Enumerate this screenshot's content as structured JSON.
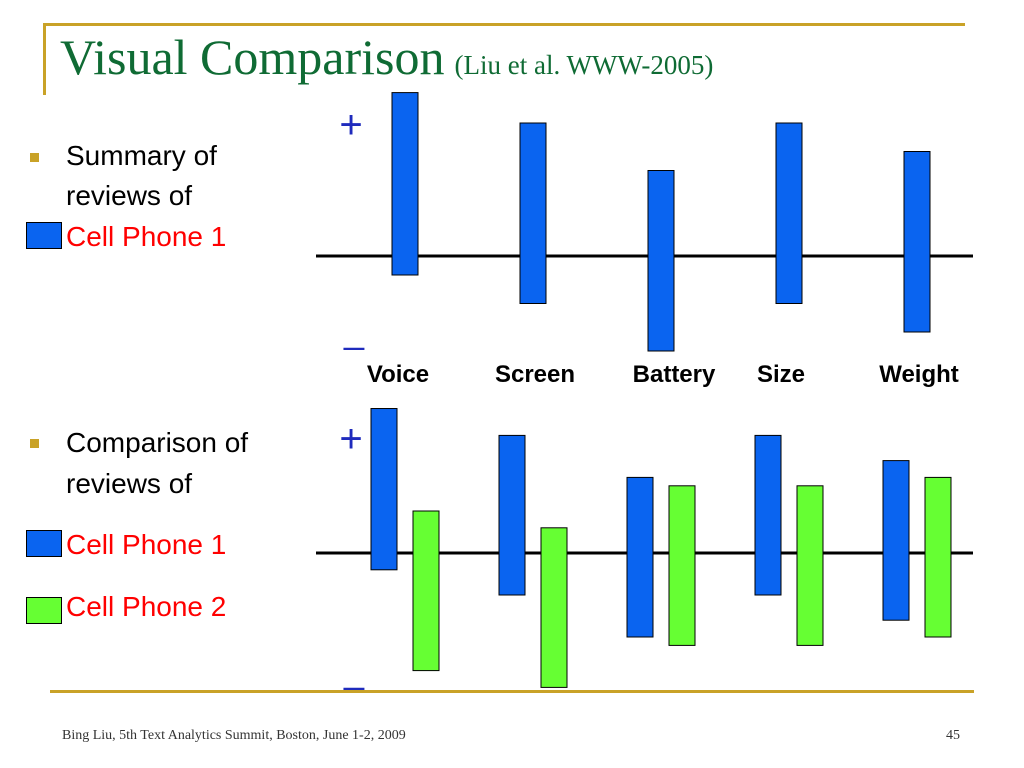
{
  "slide": {
    "title": "Visual Comparison",
    "subtitle": "(Liu et al. WWW-2005)",
    "bullet1": {
      "line1": "Summary of",
      "line2": "reviews of"
    },
    "bullet2": {
      "line1": "Comparison of",
      "line2": "reviews of"
    },
    "legend_top": [
      {
        "label": "Cell Phone 1",
        "swatch": "#0a64f0"
      }
    ],
    "legend_bottom": [
      {
        "label": "Cell Phone 1",
        "swatch": "#0a64f0"
      },
      {
        "label": "Cell Phone 2",
        "swatch": "#66ff33"
      }
    ],
    "footer_left": "Bing Liu, 5th Text Analytics Summit, Boston, June 1-2, 2009",
    "page_number": "45"
  },
  "colors": {
    "frame": "#c9a227",
    "title": "#0f6b34",
    "legend_text": "#ff0000",
    "axis_symbols": "#1f2bbd",
    "phone1": "#0a64f0",
    "phone2": "#66ff33"
  },
  "chart_data": [
    {
      "type": "bar",
      "description_style": "floating positive/negative bars around a baseline",
      "categories": [
        "Voice",
        "Screen",
        "Battery",
        "Size",
        "Weight"
      ],
      "plus_label": "+",
      "minus_label": "_",
      "ylim": [
        -1,
        1
      ],
      "series": [
        {
          "name": "Cell Phone 1",
          "color": "#0a64f0",
          "positive": [
            0.86,
            0.7,
            0.45,
            0.7,
            0.55
          ],
          "negative": [
            0.1,
            0.25,
            0.5,
            0.25,
            0.4
          ]
        }
      ]
    },
    {
      "type": "bar",
      "description_style": "floating positive/negative bars around a baseline",
      "categories": [
        "Voice",
        "Screen",
        "Battery",
        "Size",
        "Weight"
      ],
      "plus_label": "+",
      "minus_label": "_",
      "ylim": [
        -1,
        1
      ],
      "series": [
        {
          "name": "Cell Phone 1",
          "color": "#0a64f0",
          "positive": [
            0.86,
            0.7,
            0.45,
            0.7,
            0.55
          ],
          "negative": [
            0.1,
            0.25,
            0.5,
            0.25,
            0.4
          ]
        },
        {
          "name": "Cell Phone 2",
          "color": "#66ff33",
          "positive": [
            0.25,
            0.15,
            0.4,
            0.4,
            0.45
          ],
          "negative": [
            0.7,
            0.8,
            0.55,
            0.55,
            0.5
          ]
        }
      ]
    }
  ]
}
